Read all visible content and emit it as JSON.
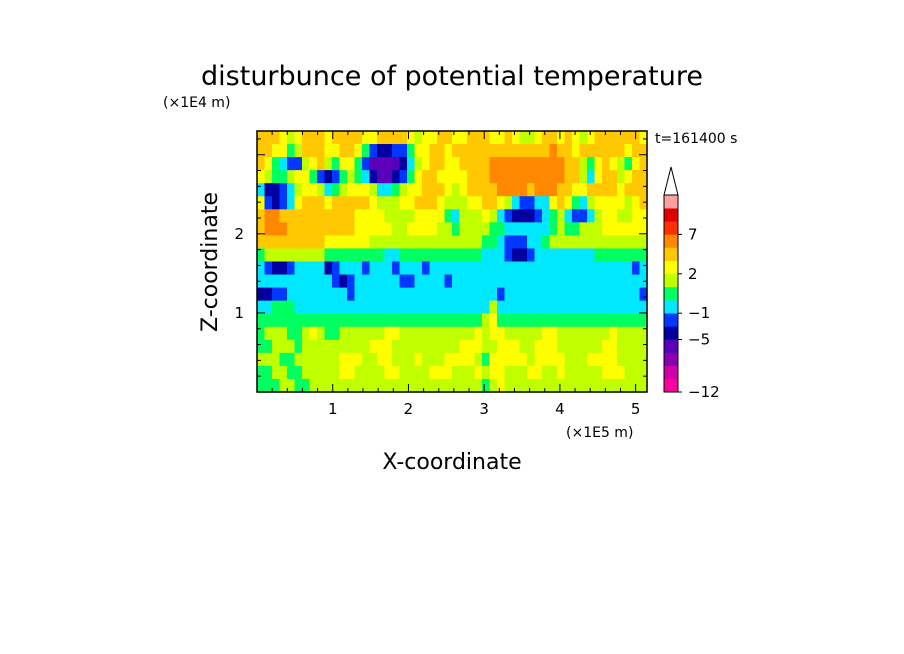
{
  "chart_data": {
    "type": "heatmap",
    "title": "disturbunce of potential temperature",
    "xlabel": "X-coordinate",
    "ylabel": "Z-coordinate",
    "x_unit": "(×1E5 m)",
    "y_unit": "(×1E4 m)",
    "time_label": "t=161400 s",
    "xlim": [
      0,
      5.15
    ],
    "ylim": [
      0,
      3.3
    ],
    "x_ticks": [
      1,
      2,
      3,
      4,
      5
    ],
    "y_ticks": [
      1,
      2
    ],
    "colorbar": {
      "levels": [
        -12,
        -11,
        -9,
        -7,
        -5,
        -3,
        -1,
        0,
        1,
        2,
        3,
        5,
        7,
        9,
        11
      ],
      "labeled": [
        {
          "value": -12,
          "label": "−12"
        },
        {
          "value": -5,
          "label": "−5"
        },
        {
          "value": -1,
          "label": "−1"
        },
        {
          "value": 2,
          "label": "2"
        },
        {
          "value": 7,
          "label": "7"
        }
      ],
      "colors": [
        "#ff00a0",
        "#d000a8",
        "#8800b0",
        "#5a00b8",
        "#0000a0",
        "#0038ff",
        "#00e8ff",
        "#00ff60",
        "#c0ff00",
        "#ffff00",
        "#ffc800",
        "#ff8800",
        "#ff3000",
        "#e00000",
        "#ffa0a0"
      ],
      "extend": "max"
    },
    "value_grid_rows_top_to_bottom": [
      [
        3,
        4,
        3,
        2,
        1,
        2,
        3,
        4,
        3,
        2,
        3,
        4,
        4,
        3,
        2,
        2,
        3,
        4,
        3,
        3,
        2,
        1,
        2,
        2,
        3,
        3,
        2,
        2,
        3,
        4,
        3,
        2,
        2,
        3,
        2,
        1,
        1,
        2,
        3,
        3,
        2,
        3,
        2,
        1,
        2,
        3,
        3,
        4,
        3,
        3,
        3,
        2
      ],
      [
        4,
        3,
        2,
        2,
        0,
        1,
        3,
        3,
        3,
        2,
        2,
        3,
        3,
        2,
        0,
        -2,
        -5,
        -5,
        -3,
        -2,
        0,
        2,
        2,
        3,
        3,
        2,
        3,
        3,
        4,
        4,
        4,
        4,
        4,
        4,
        4,
        3,
        3,
        4,
        4,
        5,
        4,
        3,
        2,
        3,
        3,
        4,
        3,
        3,
        3,
        2,
        3,
        3
      ],
      [
        3,
        2,
        0,
        -1,
        -3,
        -2,
        1,
        2,
        3,
        1,
        0,
        2,
        2,
        0,
        -3,
        -7,
        -7,
        -7,
        -7,
        -5,
        -1,
        1,
        2,
        3,
        3,
        2,
        2,
        3,
        3,
        4,
        4,
        5,
        5,
        5,
        5,
        5,
        5,
        5,
        6,
        6,
        5,
        4,
        3,
        1,
        0,
        2,
        3,
        2,
        1,
        0,
        2,
        3
      ],
      [
        2,
        1,
        0,
        0,
        1,
        2,
        2,
        0,
        -3,
        -5,
        -3,
        0,
        1,
        0,
        -1,
        -5,
        -7,
        -7,
        -5,
        -3,
        0,
        2,
        3,
        3,
        2,
        2,
        2,
        2,
        3,
        4,
        4,
        5,
        5,
        5,
        5,
        5,
        5,
        5,
        6,
        5,
        5,
        4,
        3,
        1,
        -1,
        2,
        4,
        3,
        1,
        2,
        3,
        4
      ],
      [
        -1,
        -5,
        -5,
        -3,
        -1,
        1,
        2,
        2,
        1,
        -1,
        0,
        1,
        2,
        2,
        2,
        1,
        -1,
        -1,
        0,
        1,
        2,
        2,
        3,
        3,
        3,
        2,
        1,
        2,
        3,
        3,
        4,
        4,
        5,
        5,
        5,
        5,
        4,
        5,
        5,
        5,
        4,
        3,
        2,
        2,
        3,
        3,
        3,
        3,
        2,
        3,
        4,
        3
      ],
      [
        2,
        -3,
        -5,
        -3,
        -1,
        2,
        3,
        3,
        3,
        2,
        3,
        3,
        3,
        3,
        3,
        2,
        1,
        1,
        1,
        2,
        2,
        3,
        3,
        3,
        2,
        1,
        1,
        1,
        2,
        2,
        3,
        3,
        2,
        1,
        -1,
        -3,
        -3,
        -1,
        -1,
        2,
        3,
        2,
        0,
        -1,
        1,
        2,
        2,
        2,
        2,
        1,
        2,
        3
      ],
      [
        3,
        5,
        5,
        4,
        3,
        3,
        4,
        4,
        3,
        3,
        3,
        3,
        3,
        2,
        2,
        2,
        2,
        1,
        1,
        1,
        1,
        2,
        2,
        2,
        2,
        0,
        -1,
        1,
        1,
        1,
        2,
        1,
        -1,
        -3,
        -5,
        -5,
        -5,
        -3,
        -1,
        0,
        1,
        -1,
        -3,
        -3,
        -1,
        1,
        2,
        2,
        1,
        1,
        2,
        2
      ],
      [
        4,
        5,
        5,
        5,
        4,
        4,
        3,
        3,
        3,
        3,
        3,
        3,
        3,
        2,
        2,
        2,
        2,
        2,
        1,
        1,
        2,
        2,
        2,
        2,
        1,
        1,
        0,
        1,
        1,
        1,
        1,
        0,
        0,
        -1,
        -1,
        -1,
        -1,
        -1,
        -1,
        0,
        1,
        0,
        0,
        1,
        1,
        1,
        2,
        2,
        2,
        2,
        2,
        2
      ],
      [
        3,
        4,
        4,
        4,
        4,
        3,
        3,
        3,
        3,
        2,
        2,
        2,
        2,
        2,
        2,
        1,
        1,
        1,
        1,
        1,
        1,
        1,
        1,
        1,
        1,
        1,
        1,
        1,
        1,
        1,
        0,
        0,
        -1,
        -3,
        -3,
        -3,
        -1,
        -1,
        0,
        1,
        1,
        1,
        1,
        1,
        1,
        1,
        1,
        1,
        1,
        1,
        1,
        1
      ],
      [
        0,
        1,
        1,
        1,
        1,
        1,
        1,
        1,
        1,
        0,
        0,
        0,
        0,
        0,
        0,
        0,
        0,
        -1,
        -1,
        0,
        0,
        0,
        0,
        0,
        0,
        0,
        0,
        0,
        0,
        0,
        -1,
        -1,
        -1,
        -3,
        -5,
        -5,
        -3,
        -1,
        -1,
        -1,
        -1,
        -1,
        -1,
        -1,
        -1,
        0,
        0,
        0,
        0,
        0,
        0,
        0
      ],
      [
        -1,
        -3,
        -5,
        -5,
        -3,
        -1,
        -1,
        -1,
        -1,
        -5,
        -3,
        -1,
        -1,
        -1,
        -3,
        -1,
        -1,
        -1,
        -3,
        -1,
        -1,
        -1,
        -3,
        -1,
        -1,
        -1,
        -1,
        -1,
        -1,
        -1,
        -1,
        -1,
        -1,
        -1,
        -1,
        -1,
        -1,
        -1,
        -1,
        -1,
        -1,
        -1,
        -1,
        -1,
        -1,
        -1,
        -1,
        -1,
        -1,
        -1,
        -3,
        -1
      ],
      [
        -1,
        -1,
        -1,
        -1,
        -1,
        -1,
        -1,
        -1,
        -1,
        -1,
        -3,
        -5,
        -3,
        -1,
        -1,
        -1,
        -1,
        -1,
        -1,
        -3,
        -3,
        -1,
        -1,
        -1,
        -1,
        -3,
        -1,
        -1,
        -1,
        -1,
        -1,
        -1,
        -1,
        -1,
        -1,
        -1,
        -1,
        -1,
        -1,
        -1,
        -1,
        -1,
        -1,
        -1,
        -1,
        -1,
        -1,
        -1,
        -1,
        -1,
        -1,
        -1
      ],
      [
        -5,
        -5,
        -3,
        -3,
        -1,
        -1,
        -1,
        -1,
        -1,
        -1,
        -1,
        -1,
        -3,
        -1,
        -1,
        -1,
        -1,
        -1,
        -1,
        -1,
        -1,
        -1,
        -1,
        -1,
        -1,
        -1,
        -1,
        -1,
        -1,
        -1,
        -1,
        -1,
        -3,
        -1,
        -1,
        -1,
        -1,
        -1,
        -1,
        -1,
        -1,
        -1,
        -1,
        -1,
        -1,
        -1,
        -1,
        -1,
        -1,
        -1,
        -1,
        -3
      ],
      [
        -1,
        -1,
        0,
        0,
        0,
        -1,
        -1,
        -1,
        -1,
        -1,
        -1,
        -1,
        -1,
        -1,
        -1,
        -1,
        -1,
        -1,
        -1,
        -1,
        -1,
        -1,
        -1,
        -1,
        -1,
        -1,
        -1,
        -1,
        -1,
        -1,
        -1,
        1,
        -1,
        -1,
        -1,
        -1,
        -1,
        -1,
        -1,
        -1,
        -1,
        -1,
        -1,
        -1,
        -1,
        -1,
        -1,
        -1,
        -1,
        -1,
        -1,
        -1
      ],
      [
        0,
        0,
        0,
        0,
        0,
        0,
        0,
        0,
        0,
        0,
        0,
        0,
        0,
        0,
        0,
        0,
        0,
        0,
        0,
        0,
        0,
        0,
        0,
        0,
        0,
        0,
        0,
        0,
        0,
        0,
        1,
        2,
        0,
        0,
        0,
        0,
        0,
        0,
        0,
        0,
        0,
        0,
        0,
        0,
        0,
        0,
        0,
        0,
        0,
        0,
        0,
        0
      ],
      [
        0,
        1,
        1,
        1,
        0,
        0,
        1,
        2,
        1,
        0,
        0,
        1,
        1,
        1,
        1,
        1,
        1,
        2,
        2,
        1,
        1,
        1,
        1,
        1,
        1,
        1,
        1,
        1,
        1,
        2,
        1,
        2,
        2,
        1,
        1,
        1,
        1,
        1,
        2,
        2,
        1,
        1,
        1,
        1,
        1,
        1,
        1,
        2,
        1,
        1,
        1,
        1
      ],
      [
        0,
        0,
        1,
        1,
        1,
        0,
        1,
        1,
        1,
        1,
        1,
        1,
        1,
        1,
        1,
        2,
        2,
        2,
        1,
        1,
        1,
        1,
        1,
        1,
        1,
        1,
        1,
        2,
        2,
        2,
        1,
        1,
        2,
        2,
        2,
        1,
        1,
        2,
        2,
        2,
        1,
        1,
        1,
        1,
        1,
        1,
        2,
        2,
        1,
        1,
        1,
        1
      ],
      [
        1,
        1,
        1,
        0,
        0,
        1,
        1,
        1,
        1,
        1,
        1,
        2,
        2,
        2,
        1,
        1,
        2,
        2,
        1,
        1,
        1,
        2,
        1,
        1,
        1,
        2,
        2,
        2,
        2,
        1,
        0,
        2,
        2,
        2,
        2,
        2,
        1,
        2,
        2,
        2,
        2,
        1,
        1,
        1,
        2,
        2,
        2,
        2,
        1,
        1,
        1,
        1
      ],
      [
        0,
        0,
        1,
        1,
        0,
        0,
        1,
        1,
        1,
        1,
        1,
        2,
        2,
        1,
        1,
        1,
        1,
        2,
        2,
        1,
        1,
        1,
        1,
        2,
        2,
        2,
        1,
        1,
        1,
        2,
        1,
        2,
        2,
        1,
        1,
        1,
        2,
        2,
        1,
        1,
        2,
        1,
        1,
        1,
        1,
        1,
        2,
        2,
        2,
        1,
        1,
        1
      ],
      [
        0,
        0,
        0,
        1,
        1,
        0,
        0,
        1,
        1,
        1,
        1,
        1,
        1,
        1,
        1,
        1,
        1,
        1,
        1,
        1,
        1,
        1,
        1,
        1,
        1,
        1,
        1,
        1,
        1,
        1,
        0,
        1,
        2,
        1,
        1,
        1,
        1,
        1,
        1,
        1,
        1,
        1,
        1,
        1,
        1,
        1,
        1,
        1,
        1,
        1,
        1,
        1
      ]
    ]
  }
}
